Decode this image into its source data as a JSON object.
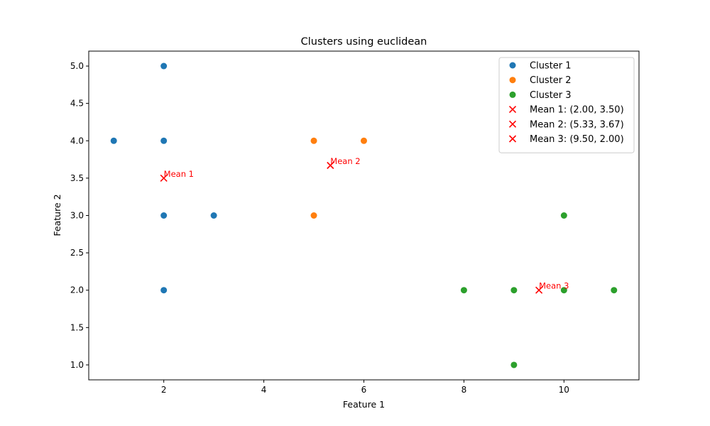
{
  "chart_data": {
    "type": "scatter",
    "title": "Clusters using euclidean",
    "xlabel": "Feature 1",
    "ylabel": "Feature 2",
    "xlim": [
      0.5,
      11.5
    ],
    "ylim": [
      0.8,
      5.2
    ],
    "xticks": [
      2,
      4,
      6,
      8,
      10
    ],
    "xtick_labels": [
      "2",
      "4",
      "6",
      "8",
      "10"
    ],
    "yticks": [
      1.0,
      1.5,
      2.0,
      2.5,
      3.0,
      3.5,
      4.0,
      4.5,
      5.0
    ],
    "ytick_labels": [
      "1.0",
      "1.5",
      "2.0",
      "2.5",
      "3.0",
      "3.5",
      "4.0",
      "4.5",
      "5.0"
    ],
    "grid": false,
    "legend_position": "top-right",
    "series": [
      {
        "name": "Cluster 1",
        "marker": "circle",
        "color": "#1f77b4",
        "points": [
          [
            2,
            5
          ],
          [
            1,
            4
          ],
          [
            2,
            4
          ],
          [
            2,
            3
          ],
          [
            3,
            3
          ],
          [
            2,
            2
          ]
        ]
      },
      {
        "name": "Cluster 2",
        "marker": "circle",
        "color": "#ff7f0e",
        "points": [
          [
            5,
            4
          ],
          [
            6,
            4
          ],
          [
            5,
            3
          ]
        ]
      },
      {
        "name": "Cluster 3",
        "marker": "circle",
        "color": "#2ca02c",
        "points": [
          [
            10,
            3
          ],
          [
            8,
            2
          ],
          [
            9,
            2
          ],
          [
            10,
            2
          ],
          [
            11,
            2
          ],
          [
            9,
            1
          ]
        ]
      },
      {
        "name": "Mean 1: (2.00, 3.50)",
        "marker": "x",
        "color": "#ff0000",
        "points": [
          [
            2.0,
            3.5
          ]
        ],
        "annotation": "Mean 1"
      },
      {
        "name": "Mean 2: (5.33, 3.67)",
        "marker": "x",
        "color": "#ff0000",
        "points": [
          [
            5.33,
            3.67
          ]
        ],
        "annotation": "Mean 2"
      },
      {
        "name": "Mean 3: (9.50, 2.00)",
        "marker": "x",
        "color": "#ff0000",
        "points": [
          [
            9.5,
            2.0
          ]
        ],
        "annotation": "Mean 3"
      }
    ]
  }
}
